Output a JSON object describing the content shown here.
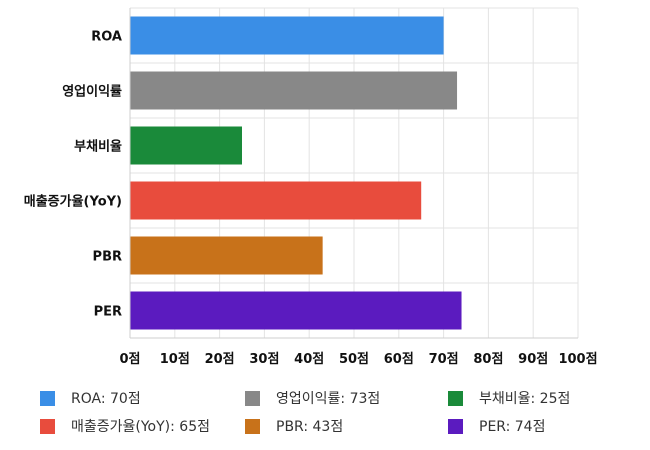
{
  "chart_data": {
    "type": "bar",
    "orientation": "horizontal",
    "categories": [
      "ROA",
      "영업이익률",
      "부채비율",
      "매출증가율(YoY)",
      "PBR",
      "PER"
    ],
    "values": [
      70,
      73,
      25,
      65,
      43,
      74
    ],
    "colors": [
      "#3a8ee6",
      "#888888",
      "#1a8a3a",
      "#e84c3d",
      "#c8721a",
      "#5b1bbf"
    ],
    "xlim": [
      0,
      100
    ],
    "x_ticks": [
      "0점",
      "10점",
      "20점",
      "30점",
      "40점",
      "50점",
      "60점",
      "70점",
      "80점",
      "90점",
      "100점"
    ],
    "grid": true,
    "legend_position": "bottom",
    "legend": [
      {
        "label": "ROA: 70점",
        "color": "#3a8ee6"
      },
      {
        "label": "영업이익률: 73점",
        "color": "#888888"
      },
      {
        "label": "부채비율: 25점",
        "color": "#1a8a3a"
      },
      {
        "label": "매출증가율(YoY): 65점",
        "color": "#e84c3d"
      },
      {
        "label": "PBR: 43점",
        "color": "#c8721a"
      },
      {
        "label": "PER: 74점",
        "color": "#5b1bbf"
      }
    ]
  }
}
